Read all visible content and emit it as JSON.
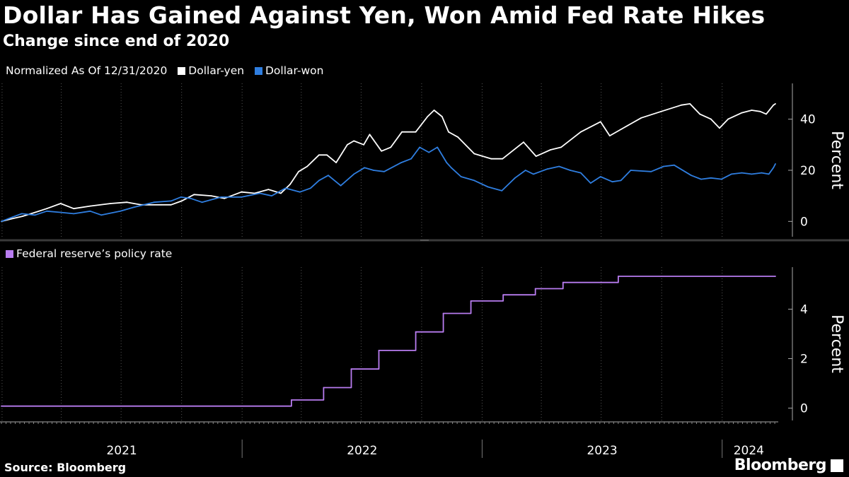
{
  "title": "Dollar Has Gained Against Yen, Won Amid Fed Rate Hikes",
  "subtitle": "Change since end of 2020",
  "legend_top": {
    "normalized_note": "Normalized As Of 12/31/2020",
    "yen_label": "Dollar-yen",
    "won_label": "Dollar-won"
  },
  "legend_bottom": {
    "rate_label": "Federal reserve’s policy rate"
  },
  "footer": {
    "source": "Source: Bloomberg",
    "brand": "Bloomberg"
  },
  "colors": {
    "background": "#000000",
    "yen": "#ffffff",
    "won": "#2f7ee0",
    "rate": "#b87cf0",
    "grid": "#555555",
    "separator": "#3a3a3a"
  },
  "chart_data": [
    {
      "type": "line",
      "ylabel": "Percent",
      "ylim": [
        -6,
        54
      ],
      "yticks": [
        0,
        20,
        40
      ],
      "xrange": [
        "2020-12-31",
        "2024-03-22"
      ],
      "x_tick_labels": [
        "2021",
        "2022",
        "2023",
        "2024"
      ],
      "grid": "vertical dotted",
      "series": [
        {
          "name": "Dollar-yen",
          "color": "#ffffff",
          "points": [
            [
              "2020-12-31",
              0
            ],
            [
              "2021-01-15",
              1
            ],
            [
              "2021-02-01",
              2
            ],
            [
              "2021-02-20",
              3.5
            ],
            [
              "2021-03-10",
              5
            ],
            [
              "2021-03-31",
              7
            ],
            [
              "2021-04-20",
              5
            ],
            [
              "2021-05-15",
              6
            ],
            [
              "2021-06-15",
              7
            ],
            [
              "2021-07-10",
              7.5
            ],
            [
              "2021-07-31",
              6.5
            ],
            [
              "2021-08-31",
              6.5
            ],
            [
              "2021-09-15",
              6.5
            ],
            [
              "2021-10-01",
              8
            ],
            [
              "2021-10-20",
              10.5
            ],
            [
              "2021-11-15",
              10
            ],
            [
              "2021-12-05",
              9
            ],
            [
              "2021-12-31",
              11.5
            ],
            [
              "2022-01-20",
              11
            ],
            [
              "2022-02-10",
              12.5
            ],
            [
              "2022-03-01",
              11
            ],
            [
              "2022-03-15",
              14.5
            ],
            [
              "2022-03-28",
              19.5
            ],
            [
              "2022-04-10",
              21.5
            ],
            [
              "2022-04-28",
              26
            ],
            [
              "2022-05-10",
              26
            ],
            [
              "2022-05-24",
              23
            ],
            [
              "2022-06-10",
              30
            ],
            [
              "2022-06-20",
              31.5
            ],
            [
              "2022-07-05",
              30
            ],
            [
              "2022-07-14",
              34
            ],
            [
              "2022-08-01",
              27.5
            ],
            [
              "2022-08-15",
              29
            ],
            [
              "2022-09-01",
              35
            ],
            [
              "2022-09-22",
              35
            ],
            [
              "2022-10-10",
              41
            ],
            [
              "2022-10-20",
              43.5
            ],
            [
              "2022-11-01",
              41
            ],
            [
              "2022-11-11",
              35
            ],
            [
              "2022-11-25",
              33
            ],
            [
              "2022-12-20",
              26.5
            ],
            [
              "2023-01-15",
              24.5
            ],
            [
              "2023-02-01",
              24.5
            ],
            [
              "2023-03-05",
              31
            ],
            [
              "2023-03-24",
              25.5
            ],
            [
              "2023-04-15",
              28
            ],
            [
              "2023-05-01",
              29
            ],
            [
              "2023-05-31",
              35
            ],
            [
              "2023-06-30",
              39
            ],
            [
              "2023-07-14",
              33.5
            ],
            [
              "2023-07-31",
              36
            ],
            [
              "2023-08-31",
              40.5
            ],
            [
              "2023-09-30",
              43
            ],
            [
              "2023-10-31",
              45.5
            ],
            [
              "2023-11-13",
              46
            ],
            [
              "2023-11-28",
              42
            ],
            [
              "2023-12-15",
              40
            ],
            [
              "2023-12-28",
              36.5
            ],
            [
              "2024-01-10",
              40
            ],
            [
              "2024-01-31",
              42.5
            ],
            [
              "2024-02-15",
              43.5
            ],
            [
              "2024-02-28",
              43
            ],
            [
              "2024-03-08",
              42
            ],
            [
              "2024-03-19",
              45.5
            ],
            [
              "2024-03-22",
              46
            ]
          ]
        },
        {
          "name": "Dollar-won",
          "color": "#2f7ee0",
          "points": [
            [
              "2020-12-31",
              0
            ],
            [
              "2021-01-15",
              1.5
            ],
            [
              "2021-01-31",
              3
            ],
            [
              "2021-02-20",
              2.5
            ],
            [
              "2021-03-10",
              4
            ],
            [
              "2021-04-01",
              3.5
            ],
            [
              "2021-04-20",
              3
            ],
            [
              "2021-05-15",
              4
            ],
            [
              "2021-06-01",
              2.5
            ],
            [
              "2021-06-30",
              4
            ],
            [
              "2021-07-20",
              5.5
            ],
            [
              "2021-08-20",
              7.5
            ],
            [
              "2021-09-15",
              8
            ],
            [
              "2021-09-30",
              9.5
            ],
            [
              "2021-10-15",
              9
            ],
            [
              "2021-11-01",
              7.5
            ],
            [
              "2021-11-30",
              9.5
            ],
            [
              "2021-12-31",
              9.5
            ],
            [
              "2022-01-28",
              11
            ],
            [
              "2022-02-15",
              10
            ],
            [
              "2022-03-08",
              13
            ],
            [
              "2022-03-30",
              11.5
            ],
            [
              "2022-04-15",
              13
            ],
            [
              "2022-04-28",
              16
            ],
            [
              "2022-05-12",
              18
            ],
            [
              "2022-05-31",
              14
            ],
            [
              "2022-06-20",
              18.5
            ],
            [
              "2022-07-06",
              21
            ],
            [
              "2022-07-20",
              20
            ],
            [
              "2022-08-05",
              19.5
            ],
            [
              "2022-08-31",
              23
            ],
            [
              "2022-09-15",
              24.5
            ],
            [
              "2022-09-28",
              29
            ],
            [
              "2022-10-12",
              27
            ],
            [
              "2022-10-25",
              29
            ],
            [
              "2022-11-08",
              23
            ],
            [
              "2022-11-15",
              21
            ],
            [
              "2022-11-30",
              17.5
            ],
            [
              "2022-12-20",
              16
            ],
            [
              "2023-01-10",
              13.5
            ],
            [
              "2023-01-31",
              12
            ],
            [
              "2023-02-20",
              17
            ],
            [
              "2023-03-08",
              20
            ],
            [
              "2023-03-20",
              18.5
            ],
            [
              "2023-04-10",
              20.5
            ],
            [
              "2023-04-28",
              21.5
            ],
            [
              "2023-05-15",
              20
            ],
            [
              "2023-05-31",
              19
            ],
            [
              "2023-06-15",
              15
            ],
            [
              "2023-06-30",
              17.5
            ],
            [
              "2023-07-18",
              15.5
            ],
            [
              "2023-07-31",
              16
            ],
            [
              "2023-08-15",
              20
            ],
            [
              "2023-09-15",
              19.5
            ],
            [
              "2023-10-04",
              21.5
            ],
            [
              "2023-10-20",
              22
            ],
            [
              "2023-11-15",
              18
            ],
            [
              "2023-11-30",
              16.5
            ],
            [
              "2023-12-15",
              17
            ],
            [
              "2023-12-31",
              16.5
            ],
            [
              "2024-01-15",
              18.5
            ],
            [
              "2024-01-31",
              19
            ],
            [
              "2024-02-15",
              18.5
            ],
            [
              "2024-03-01",
              19
            ],
            [
              "2024-03-12",
              18.5
            ],
            [
              "2024-03-19",
              21
            ],
            [
              "2024-03-22",
              22.5
            ]
          ]
        }
      ]
    },
    {
      "type": "line",
      "step": true,
      "ylabel": "Percent",
      "ylim": [
        -0.5,
        5.7
      ],
      "yticks": [
        0,
        2,
        4
      ],
      "xrange": [
        "2020-12-31",
        "2024-03-22"
      ],
      "x_tick_labels": [
        "2021",
        "2022",
        "2023",
        "2024"
      ],
      "series": [
        {
          "name": "Federal reserve’s policy rate",
          "color": "#b87cf0",
          "points": [
            [
              "2020-12-31",
              0.08
            ],
            [
              "2022-03-17",
              0.33
            ],
            [
              "2022-05-05",
              0.83
            ],
            [
              "2022-06-16",
              1.58
            ],
            [
              "2022-07-28",
              2.33
            ],
            [
              "2022-09-22",
              3.08
            ],
            [
              "2022-11-03",
              3.83
            ],
            [
              "2022-12-15",
              4.33
            ],
            [
              "2023-02-02",
              4.58
            ],
            [
              "2023-03-23",
              4.83
            ],
            [
              "2023-05-04",
              5.08
            ],
            [
              "2023-07-27",
              5.33
            ],
            [
              "2024-03-22",
              5.33
            ]
          ]
        }
      ]
    }
  ]
}
